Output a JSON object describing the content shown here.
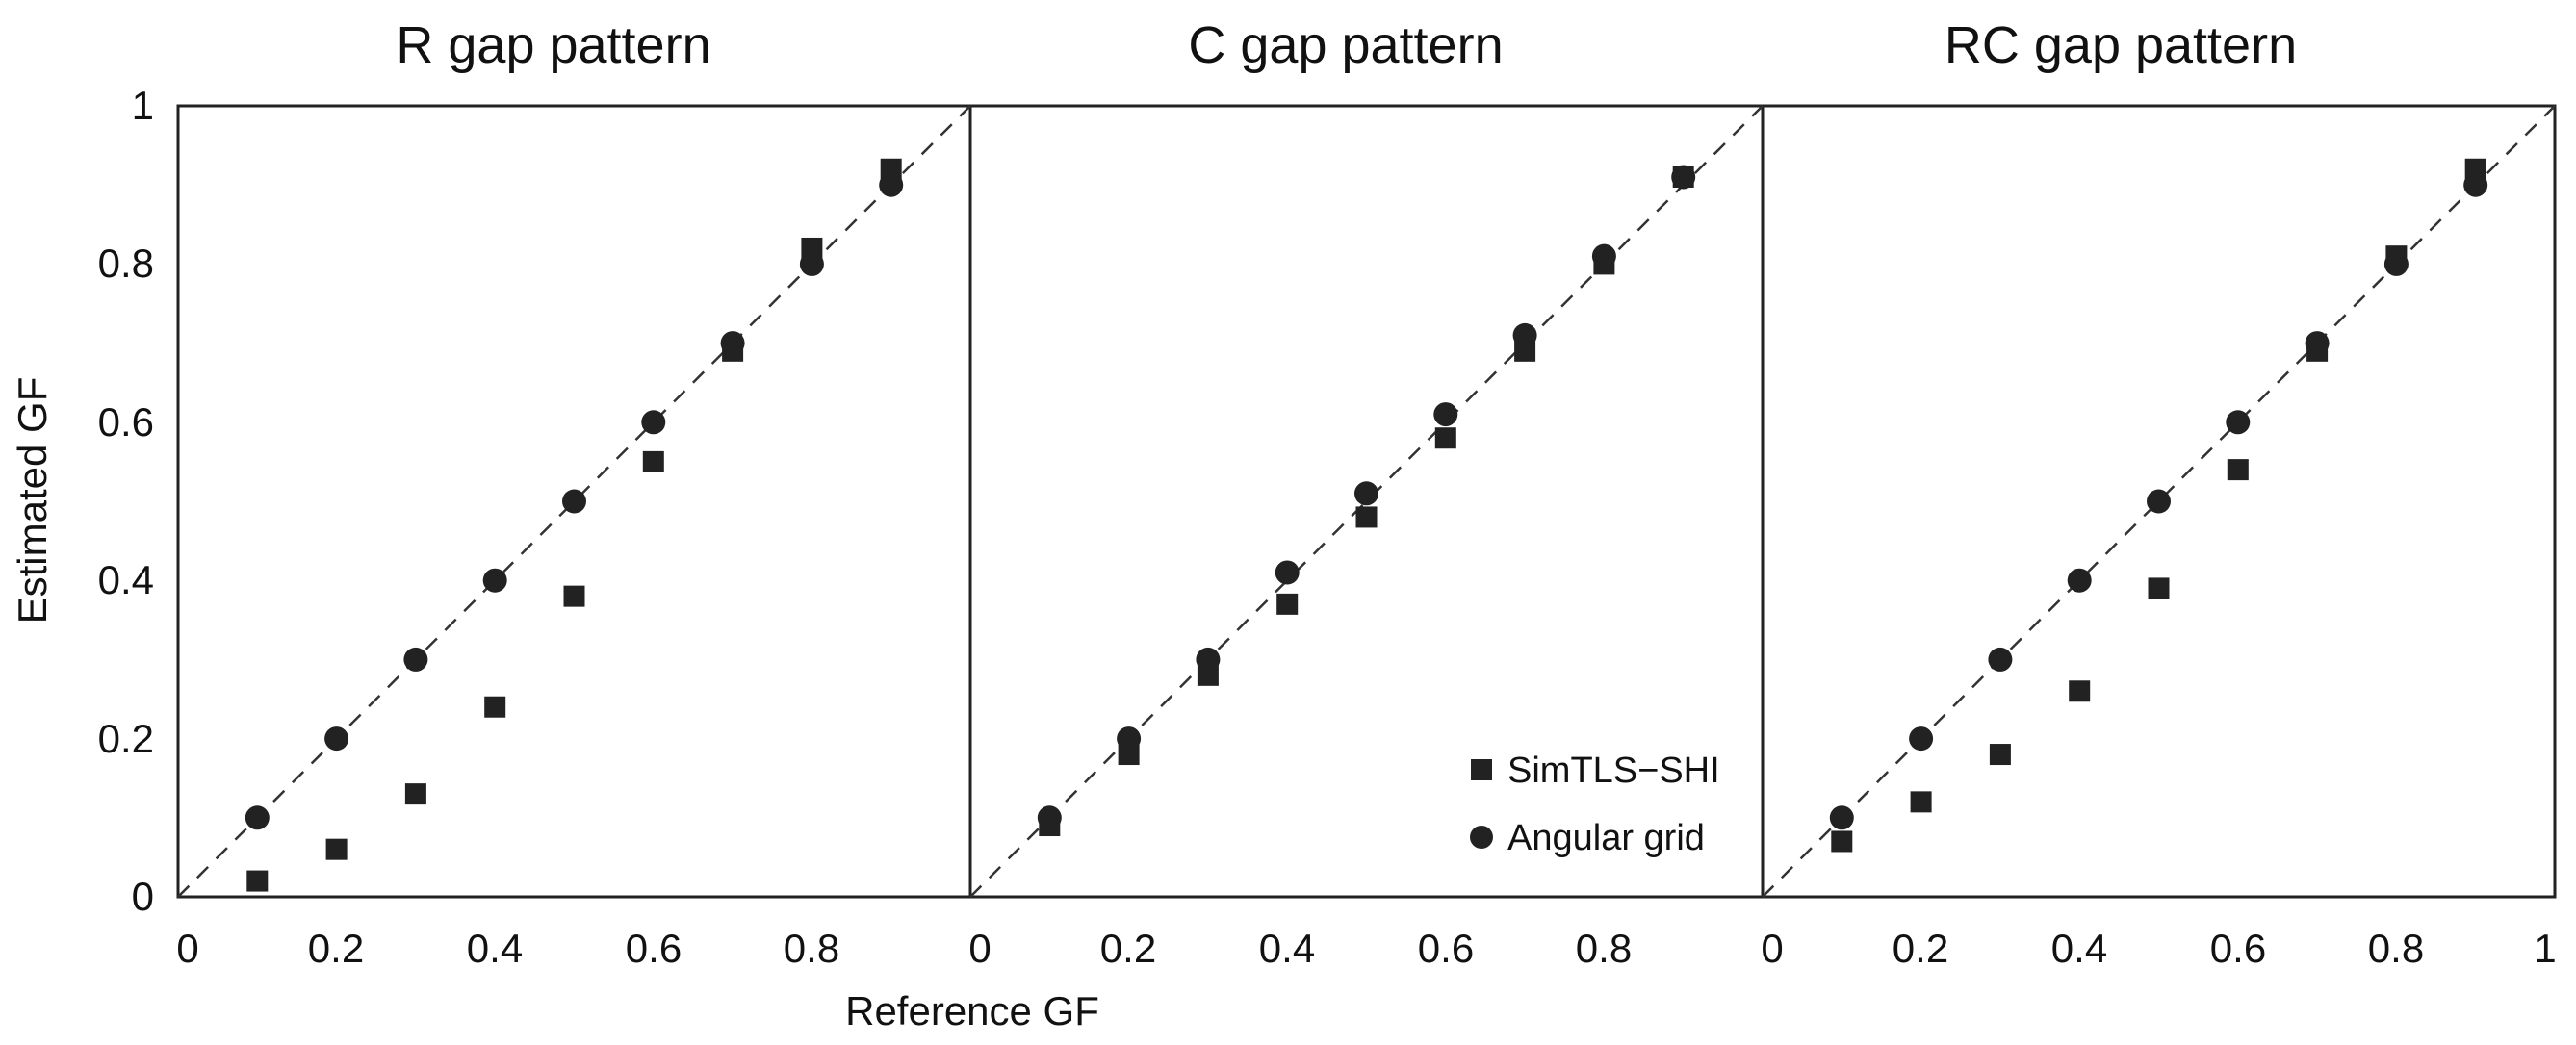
{
  "chart_data": {
    "type": "scatter",
    "xlabel": "Reference GF",
    "ylabel": "Estimated GF",
    "xlim": [
      0,
      1
    ],
    "ylim": [
      0,
      1
    ],
    "x_tick_labels_panel1": [
      "0",
      "0.2",
      "0.4",
      "0.6",
      "0.8"
    ],
    "x_tick_labels_panel2": [
      "0",
      "0.2",
      "0.4",
      "0.6",
      "0.8"
    ],
    "x_tick_labels_panel3": [
      "0",
      "0.2",
      "0.4",
      "0.6",
      "0.8",
      "1"
    ],
    "y_tick_labels": [
      "0",
      "0.2",
      "0.4",
      "0.6",
      "0.8",
      "1"
    ],
    "reference_line": "y = x (dashed)",
    "legend": {
      "location": "bottom-right of middle panel",
      "entries": [
        {
          "name": "SimTLS−SHI",
          "marker": "square"
        },
        {
          "name": "Angular grid",
          "marker": "circle"
        }
      ]
    },
    "panels": [
      {
        "title": "R gap pattern",
        "x": [
          0.1,
          0.2,
          0.3,
          0.4,
          0.5,
          0.6,
          0.7,
          0.8,
          0.9
        ],
        "series": [
          {
            "name": "SimTLS−SHI",
            "marker": "square",
            "values": [
              0.02,
              0.06,
              0.13,
              0.24,
              0.38,
              0.55,
              0.69,
              0.82,
              0.92
            ]
          },
          {
            "name": "Angular grid",
            "marker": "circle",
            "values": [
              0.1,
              0.2,
              0.3,
              0.4,
              0.5,
              0.6,
              0.7,
              0.8,
              0.9
            ]
          }
        ]
      },
      {
        "title": "C gap pattern",
        "x": [
          0.1,
          0.2,
          0.3,
          0.4,
          0.5,
          0.6,
          0.7,
          0.8,
          0.9
        ],
        "series": [
          {
            "name": "SimTLS−SHI",
            "marker": "square",
            "values": [
              0.09,
              0.18,
              0.28,
              0.37,
              0.48,
              0.58,
              0.69,
              0.8,
              0.91
            ]
          },
          {
            "name": "Angular grid",
            "marker": "circle",
            "values": [
              0.1,
              0.2,
              0.3,
              0.41,
              0.51,
              0.61,
              0.71,
              0.81,
              0.91
            ]
          }
        ]
      },
      {
        "title": "RC gap pattern",
        "x": [
          0.1,
          0.2,
          0.3,
          0.4,
          0.5,
          0.6,
          0.7,
          0.8,
          0.9
        ],
        "series": [
          {
            "name": "SimTLS−SHI",
            "marker": "square",
            "values": [
              0.07,
              0.12,
              0.18,
              0.26,
              0.39,
              0.54,
              0.69,
              0.81,
              0.92
            ]
          },
          {
            "name": "Angular grid",
            "marker": "circle",
            "values": [
              0.1,
              0.2,
              0.3,
              0.4,
              0.5,
              0.6,
              0.7,
              0.8,
              0.9
            ]
          }
        ]
      }
    ]
  }
}
